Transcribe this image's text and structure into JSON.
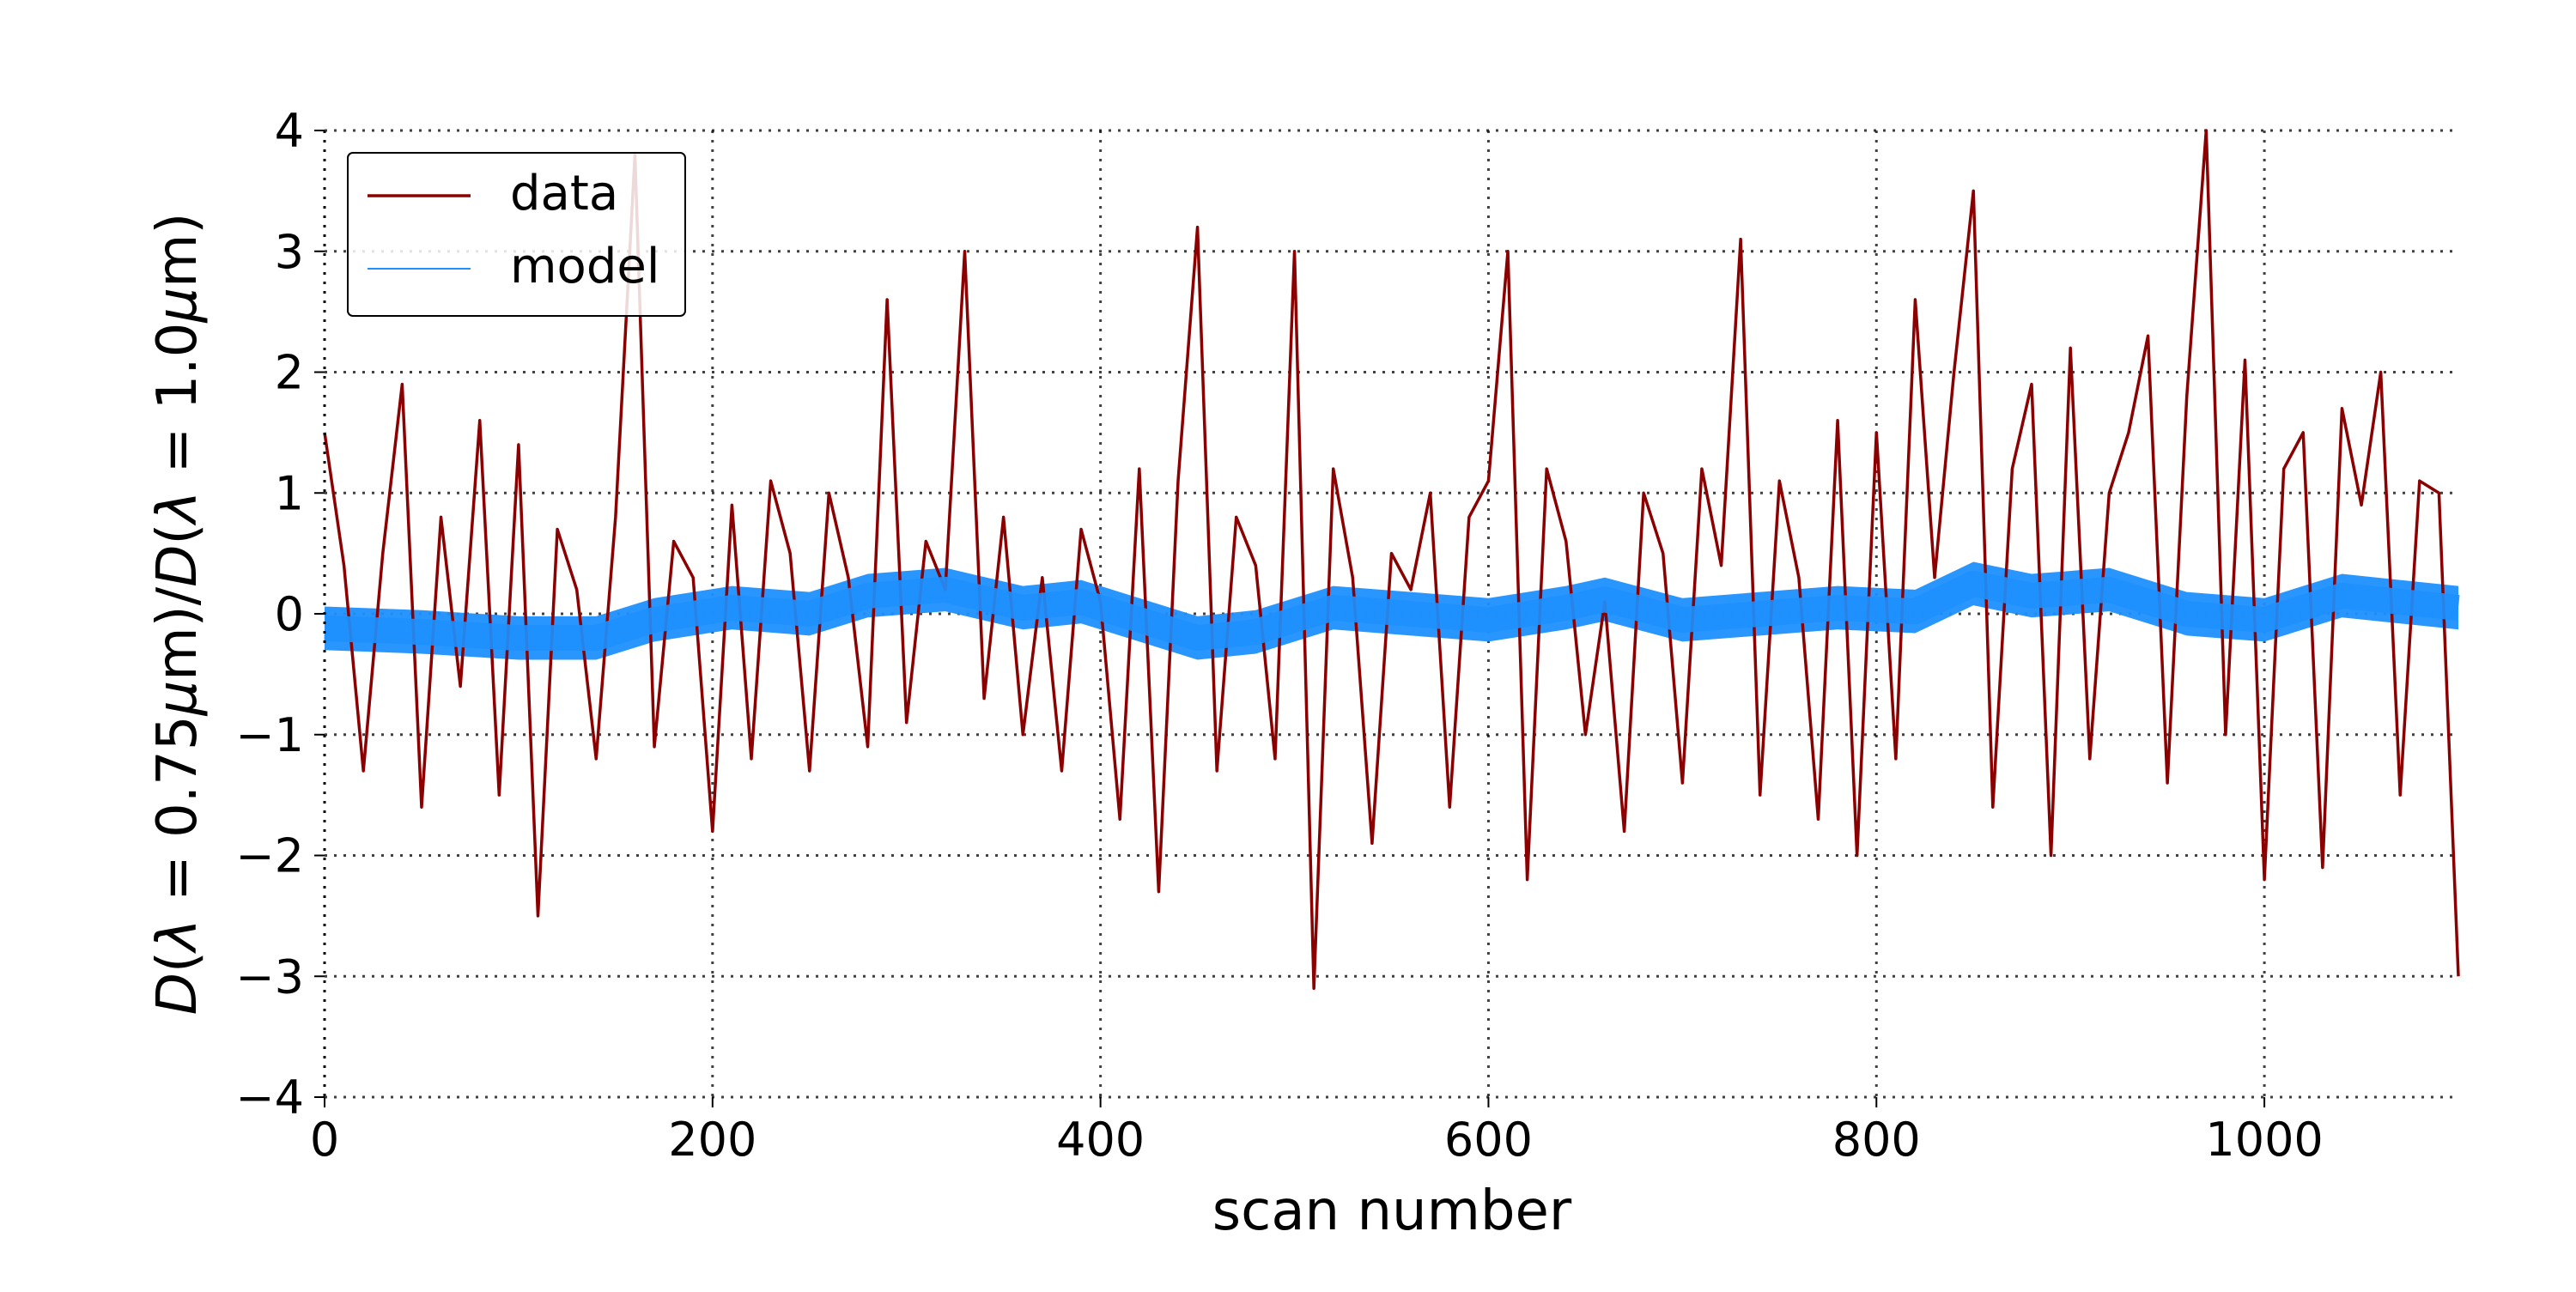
{
  "chart_data": {
    "type": "line",
    "title": "",
    "xlabel": "scan number",
    "ylabel_parts": [
      {
        "text": "D",
        "italic": true
      },
      {
        "text": "(",
        "italic": false
      },
      {
        "text": "λ",
        "italic": true
      },
      {
        "text": " = 0.75",
        "italic": false
      },
      {
        "text": "μ",
        "italic": true
      },
      {
        "text": "m)/",
        "italic": false
      },
      {
        "text": "D",
        "italic": true
      },
      {
        "text": "(",
        "italic": false
      },
      {
        "text": "λ",
        "italic": true
      },
      {
        "text": " = 1.0",
        "italic": false
      },
      {
        "text": "μ",
        "italic": true
      },
      {
        "text": "m)",
        "italic": false
      }
    ],
    "xlim": [
      0,
      1100
    ],
    "ylim": [
      -4,
      4
    ],
    "xticks": [
      0,
      200,
      400,
      600,
      800,
      1000
    ],
    "xtick_labels": [
      "0",
      "200",
      "400",
      "600",
      "800",
      "1000"
    ],
    "yticks": [
      -4,
      -3,
      -2,
      -1,
      0,
      1,
      2,
      3,
      4
    ],
    "ytick_labels": [
      "−4",
      "−3",
      "−2",
      "−1",
      "0",
      "1",
      "2",
      "3",
      "4"
    ],
    "grid": true,
    "grid_style": "dotted",
    "legend_position": "top-left",
    "legend": [
      {
        "label": "data",
        "color": "#8b0000"
      },
      {
        "label": "model",
        "color": "#1e90ff"
      }
    ],
    "series": [
      {
        "name": "data",
        "color": "#8b0000",
        "x_step": 10,
        "values": [
          1.5,
          0.4,
          -1.3,
          0.5,
          1.9,
          -1.6,
          0.8,
          -0.6,
          1.6,
          -1.5,
          1.4,
          -2.5,
          0.7,
          0.2,
          -1.2,
          0.8,
          3.8,
          -1.1,
          0.6,
          0.3,
          -1.8,
          0.9,
          -1.2,
          1.1,
          0.5,
          -1.3,
          1.0,
          0.3,
          -1.1,
          2.6,
          -0.9,
          0.6,
          0.2,
          3.0,
          -0.7,
          0.8,
          -1.0,
          0.3,
          -1.3,
          0.7,
          0.1,
          -1.7,
          1.2,
          -2.3,
          1.1,
          3.2,
          -1.3,
          0.8,
          0.4,
          -1.2,
          3.0,
          -3.1,
          1.2,
          0.3,
          -1.9,
          0.5,
          0.2,
          1.0,
          -1.6,
          0.8,
          1.1,
          3.0,
          -2.2,
          1.2,
          0.6,
          -1.0,
          0.1,
          -1.8,
          1.0,
          0.5,
          -1.4,
          1.2,
          0.4,
          3.1,
          -1.5,
          1.1,
          0.3,
          -1.7,
          1.6,
          -2.0,
          1.5,
          -1.2,
          2.6,
          0.3,
          2.0,
          3.5,
          -1.6,
          1.2,
          1.9,
          -2.0,
          2.2,
          -1.2,
          1.0,
          1.5,
          2.3,
          -1.4,
          1.8,
          4.0,
          -1.0,
          2.1,
          -2.2,
          1.2,
          1.5,
          -2.1,
          1.7,
          0.9,
          2.0,
          -1.5,
          1.1,
          1.0,
          -3.0
        ]
      },
      {
        "name": "model",
        "color": "#1e90ff",
        "band_halfwidth": 0.18,
        "x": [
          0,
          50,
          100,
          140,
          170,
          210,
          250,
          280,
          320,
          360,
          390,
          420,
          450,
          480,
          520,
          560,
          600,
          640,
          660,
          700,
          740,
          780,
          820,
          850,
          880,
          920,
          960,
          1000,
          1040,
          1070,
          1100
        ],
        "values": [
          -0.12,
          -0.15,
          -0.2,
          -0.2,
          -0.05,
          0.05,
          0.0,
          0.15,
          0.2,
          0.05,
          0.1,
          -0.05,
          -0.2,
          -0.15,
          0.05,
          0.0,
          -0.05,
          0.05,
          0.12,
          -0.05,
          0.0,
          0.05,
          0.02,
          0.25,
          0.15,
          0.2,
          0.0,
          -0.05,
          0.15,
          0.1,
          0.05
        ]
      }
    ]
  }
}
